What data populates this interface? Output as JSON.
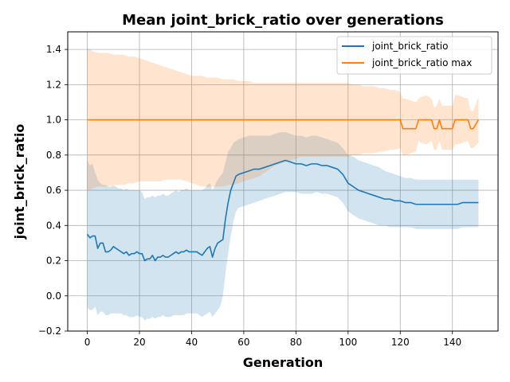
{
  "chart_data": {
    "type": "line",
    "title": "Mean joint_brick_ratio over generations",
    "xlabel": "Generation",
    "ylabel": "joint_brick_ratio",
    "xlim": [
      -7.5,
      157.5
    ],
    "ylim": [
      -0.2,
      1.5
    ],
    "xticks": [
      0,
      20,
      40,
      60,
      80,
      100,
      120,
      140
    ],
    "yticks": [
      -0.2,
      0.0,
      0.2,
      0.4,
      0.6,
      0.8,
      1.0,
      1.2,
      1.4
    ],
    "ytick_labels": [
      "−0.2",
      "0.0",
      "0.2",
      "0.4",
      "0.6",
      "0.8",
      "1.0",
      "1.2",
      "1.4"
    ],
    "grid": true,
    "legend_position": "top-right",
    "series": [
      {
        "name": "joint_brick_ratio",
        "color": "#1f77b4",
        "band_alpha": 0.2,
        "x": [
          0,
          1,
          2,
          3,
          4,
          5,
          6,
          7,
          8,
          9,
          10,
          11,
          12,
          13,
          14,
          15,
          16,
          17,
          18,
          19,
          20,
          21,
          22,
          23,
          24,
          25,
          26,
          27,
          28,
          29,
          30,
          31,
          32,
          33,
          34,
          35,
          36,
          37,
          38,
          39,
          40,
          41,
          42,
          43,
          44,
          45,
          46,
          47,
          48,
          49,
          50,
          51,
          52,
          53,
          54,
          55,
          56,
          57,
          58,
          60,
          62,
          64,
          66,
          68,
          70,
          72,
          74,
          76,
          78,
          80,
          82,
          84,
          86,
          88,
          90,
          92,
          94,
          96,
          98,
          100,
          102,
          104,
          106,
          108,
          110,
          112,
          114,
          116,
          118,
          120,
          122,
          124,
          126,
          128,
          130,
          132,
          134,
          136,
          138,
          140,
          142,
          144,
          146,
          148,
          150
        ],
        "values": [
          0.35,
          0.33,
          0.34,
          0.34,
          0.27,
          0.3,
          0.3,
          0.25,
          0.25,
          0.26,
          0.28,
          0.27,
          0.26,
          0.25,
          0.24,
          0.25,
          0.23,
          0.24,
          0.24,
          0.25,
          0.24,
          0.24,
          0.2,
          0.21,
          0.21,
          0.23,
          0.2,
          0.22,
          0.22,
          0.23,
          0.22,
          0.22,
          0.23,
          0.24,
          0.25,
          0.24,
          0.25,
          0.25,
          0.26,
          0.25,
          0.25,
          0.25,
          0.25,
          0.24,
          0.23,
          0.25,
          0.27,
          0.28,
          0.22,
          0.27,
          0.3,
          0.31,
          0.32,
          0.44,
          0.53,
          0.6,
          0.64,
          0.68,
          0.69,
          0.7,
          0.71,
          0.72,
          0.72,
          0.73,
          0.74,
          0.75,
          0.76,
          0.77,
          0.76,
          0.75,
          0.75,
          0.74,
          0.75,
          0.75,
          0.74,
          0.74,
          0.73,
          0.72,
          0.69,
          0.64,
          0.62,
          0.6,
          0.59,
          0.58,
          0.57,
          0.56,
          0.55,
          0.55,
          0.54,
          0.54,
          0.53,
          0.53,
          0.52,
          0.52,
          0.52,
          0.52,
          0.52,
          0.52,
          0.52,
          0.52,
          0.52,
          0.53,
          0.53,
          0.53,
          0.53
        ],
        "upper": [
          0.77,
          0.74,
          0.75,
          0.7,
          0.66,
          0.64,
          0.63,
          0.63,
          0.62,
          0.62,
          0.63,
          0.62,
          0.61,
          0.61,
          0.6,
          0.61,
          0.6,
          0.6,
          0.6,
          0.6,
          0.6,
          0.59,
          0.55,
          0.56,
          0.56,
          0.57,
          0.56,
          0.57,
          0.57,
          0.58,
          0.57,
          0.57,
          0.58,
          0.59,
          0.6,
          0.59,
          0.6,
          0.6,
          0.61,
          0.6,
          0.6,
          0.6,
          0.6,
          0.6,
          0.6,
          0.61,
          0.63,
          0.64,
          0.6,
          0.63,
          0.66,
          0.68,
          0.7,
          0.76,
          0.82,
          0.84,
          0.87,
          0.88,
          0.89,
          0.9,
          0.91,
          0.91,
          0.91,
          0.91,
          0.91,
          0.92,
          0.93,
          0.93,
          0.92,
          0.91,
          0.91,
          0.9,
          0.91,
          0.91,
          0.9,
          0.89,
          0.88,
          0.87,
          0.84,
          0.8,
          0.79,
          0.77,
          0.76,
          0.75,
          0.74,
          0.73,
          0.71,
          0.7,
          0.69,
          0.68,
          0.67,
          0.67,
          0.66,
          0.66,
          0.66,
          0.66,
          0.66,
          0.66,
          0.66,
          0.66,
          0.66,
          0.66,
          0.66,
          0.66,
          0.66
        ],
        "lower": [
          -0.07,
          -0.08,
          -0.08,
          -0.06,
          -0.11,
          -0.09,
          -0.09,
          -0.11,
          -0.11,
          -0.1,
          -0.1,
          -0.1,
          -0.1,
          -0.1,
          -0.11,
          -0.11,
          -0.12,
          -0.12,
          -0.12,
          -0.11,
          -0.12,
          -0.12,
          -0.14,
          -0.13,
          -0.13,
          -0.12,
          -0.13,
          -0.12,
          -0.12,
          -0.11,
          -0.12,
          -0.12,
          -0.12,
          -0.11,
          -0.11,
          -0.11,
          -0.11,
          -0.11,
          -0.1,
          -0.1,
          -0.1,
          -0.1,
          -0.1,
          -0.11,
          -0.12,
          -0.11,
          -0.1,
          -0.09,
          -0.12,
          -0.1,
          -0.08,
          -0.06,
          0.0,
          0.13,
          0.24,
          0.34,
          0.42,
          0.48,
          0.5,
          0.51,
          0.52,
          0.53,
          0.54,
          0.55,
          0.56,
          0.57,
          0.58,
          0.59,
          0.59,
          0.59,
          0.58,
          0.58,
          0.58,
          0.59,
          0.58,
          0.58,
          0.57,
          0.56,
          0.53,
          0.48,
          0.46,
          0.44,
          0.43,
          0.42,
          0.41,
          0.4,
          0.4,
          0.39,
          0.39,
          0.39,
          0.39,
          0.39,
          0.38,
          0.38,
          0.38,
          0.38,
          0.38,
          0.38,
          0.38,
          0.38,
          0.38,
          0.39,
          0.39,
          0.39,
          0.39
        ]
      },
      {
        "name": "joint_brick_ratio max",
        "color": "#ff7f0e",
        "band_alpha": 0.2,
        "x": [
          0,
          2,
          4,
          6,
          8,
          10,
          12,
          14,
          16,
          18,
          20,
          22,
          24,
          26,
          28,
          30,
          32,
          34,
          36,
          38,
          40,
          42,
          44,
          46,
          48,
          50,
          52,
          54,
          56,
          58,
          60,
          62,
          64,
          66,
          68,
          70,
          72,
          74,
          76,
          78,
          80,
          82,
          84,
          86,
          88,
          90,
          92,
          94,
          96,
          98,
          100,
          102,
          104,
          106,
          108,
          110,
          112,
          114,
          116,
          118,
          120,
          121,
          122,
          124,
          126,
          127,
          128,
          130,
          132,
          133,
          134,
          135,
          136,
          138,
          140,
          141,
          142,
          144,
          146,
          147,
          148,
          150
        ],
        "values": [
          1,
          1,
          1,
          1,
          1,
          1,
          1,
          1,
          1,
          1,
          1,
          1,
          1,
          1,
          1,
          1,
          1,
          1,
          1,
          1,
          1,
          1,
          1,
          1,
          1,
          1,
          1,
          1,
          1,
          1,
          1,
          1,
          1,
          1,
          1,
          1,
          1,
          1,
          1,
          1,
          1,
          1,
          1,
          1,
          1,
          1,
          1,
          1,
          1,
          1,
          1,
          1,
          1,
          1,
          1,
          1,
          1,
          1,
          1,
          1,
          1,
          0.95,
          0.95,
          0.95,
          0.95,
          1.0,
          1.0,
          1.0,
          1.0,
          0.95,
          0.95,
          1.0,
          0.95,
          0.95,
          0.95,
          1.0,
          1.0,
          1.0,
          1.0,
          0.95,
          0.95,
          1.0
        ],
        "upper": [
          1.41,
          1.39,
          1.38,
          1.38,
          1.38,
          1.37,
          1.37,
          1.37,
          1.36,
          1.36,
          1.35,
          1.34,
          1.33,
          1.32,
          1.31,
          1.3,
          1.29,
          1.28,
          1.27,
          1.26,
          1.25,
          1.25,
          1.25,
          1.24,
          1.24,
          1.24,
          1.23,
          1.23,
          1.23,
          1.22,
          1.22,
          1.22,
          1.21,
          1.21,
          1.21,
          1.21,
          1.21,
          1.21,
          1.21,
          1.21,
          1.21,
          1.21,
          1.21,
          1.21,
          1.21,
          1.21,
          1.21,
          1.21,
          1.21,
          1.21,
          1.21,
          1.2,
          1.2,
          1.19,
          1.19,
          1.19,
          1.18,
          1.18,
          1.17,
          1.17,
          1.16,
          1.12,
          1.12,
          1.11,
          1.1,
          1.12,
          1.13,
          1.14,
          1.12,
          1.07,
          1.08,
          1.12,
          1.08,
          1.08,
          1.08,
          1.14,
          1.14,
          1.13,
          1.12,
          1.05,
          1.05,
          1.13
        ],
        "lower": [
          0.6,
          0.61,
          0.62,
          0.62,
          0.62,
          0.63,
          0.63,
          0.63,
          0.64,
          0.64,
          0.65,
          0.65,
          0.65,
          0.65,
          0.65,
          0.66,
          0.66,
          0.66,
          0.66,
          0.65,
          0.64,
          0.63,
          0.62,
          0.62,
          0.62,
          0.62,
          0.62,
          0.63,
          0.63,
          0.64,
          0.65,
          0.66,
          0.67,
          0.68,
          0.7,
          0.72,
          0.74,
          0.75,
          0.76,
          0.77,
          0.78,
          0.79,
          0.79,
          0.79,
          0.79,
          0.79,
          0.79,
          0.79,
          0.79,
          0.79,
          0.79,
          0.8,
          0.8,
          0.81,
          0.81,
          0.81,
          0.82,
          0.82,
          0.83,
          0.83,
          0.84,
          0.8,
          0.8,
          0.81,
          0.82,
          0.88,
          0.87,
          0.86,
          0.88,
          0.83,
          0.83,
          0.88,
          0.83,
          0.83,
          0.83,
          0.86,
          0.86,
          0.87,
          0.88,
          0.84,
          0.84,
          0.87
        ]
      }
    ]
  }
}
